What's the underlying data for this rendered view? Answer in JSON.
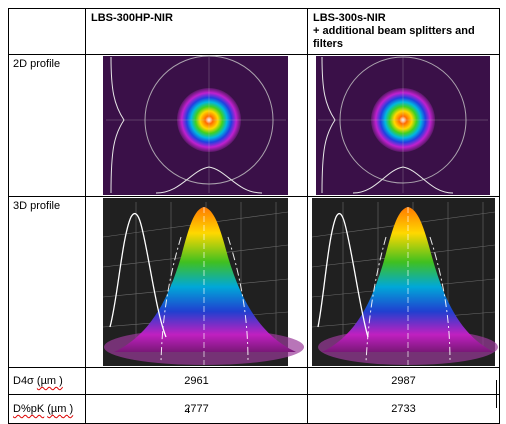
{
  "table": {
    "columns": [
      "",
      "LBS-300HP-NIR",
      "LBS-300s-NIR"
    ],
    "col2_subtitle": "+ additional beam splitters and filters",
    "rows": [
      {
        "label": "2D profile"
      },
      {
        "label": "3D profile"
      },
      {
        "label_prefix": "D4σ",
        "label_unit": "(µm )",
        "values": [
          "2961",
          "2987"
        ]
      },
      {
        "label_prefix": "D%pK",
        "label_unit": "(µm )",
        "values": [
          "2777",
          "2733"
        ]
      }
    ]
  },
  "colors": {
    "profile_background": "#3a1048",
    "accent_ring": "#c8c8c8",
    "surface_top": "#ff7a00"
  }
}
